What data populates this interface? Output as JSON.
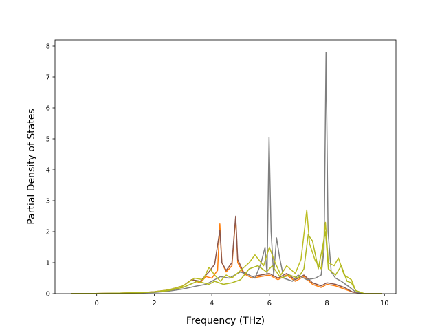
{
  "chart_data": {
    "type": "line",
    "title": "",
    "xlabel": "Frequency (THz)",
    "ylabel": "Partial Density of States",
    "xlim": [
      -1.45,
      10.4
    ],
    "ylim": [
      0,
      8.2
    ],
    "xticks": [
      0,
      2,
      4,
      6,
      8,
      10
    ],
    "yticks": [
      0,
      1,
      2,
      3,
      4,
      5,
      6,
      7,
      8
    ],
    "grid": false,
    "legend": "none",
    "series": [
      {
        "color": "#ff7f0e",
        "points": [
          [
            -0.9,
            0
          ],
          [
            0.5,
            0.01
          ],
          [
            1.5,
            0.03
          ],
          [
            2,
            0.06
          ],
          [
            2.5,
            0.12
          ],
          [
            3,
            0.25
          ],
          [
            3.3,
            0.45
          ],
          [
            3.6,
            0.35
          ],
          [
            3.8,
            0.55
          ],
          [
            4,
            0.5
          ],
          [
            4.2,
            0.75
          ],
          [
            4.28,
            2.25
          ],
          [
            4.35,
            1.0
          ],
          [
            4.5,
            0.7
          ],
          [
            4.7,
            0.9
          ],
          [
            4.83,
            2.45
          ],
          [
            4.9,
            1.0
          ],
          [
            5.1,
            0.65
          ],
          [
            5.4,
            0.5
          ],
          [
            5.7,
            0.55
          ],
          [
            6,
            0.6
          ],
          [
            6.3,
            0.45
          ],
          [
            6.6,
            0.6
          ],
          [
            6.9,
            0.4
          ],
          [
            7.2,
            0.55
          ],
          [
            7.5,
            0.3
          ],
          [
            7.8,
            0.2
          ],
          [
            8.0,
            0.3
          ],
          [
            8.3,
            0.25
          ],
          [
            8.6,
            0.15
          ],
          [
            8.9,
            0.05
          ],
          [
            9.3,
            0
          ],
          [
            9.9,
            0
          ]
        ]
      },
      {
        "color": "#8c564b",
        "points": [
          [
            -0.9,
            0
          ],
          [
            0.5,
            0.01
          ],
          [
            1.5,
            0.03
          ],
          [
            2,
            0.06
          ],
          [
            2.5,
            0.12
          ],
          [
            3,
            0.25
          ],
          [
            3.3,
            0.45
          ],
          [
            3.6,
            0.4
          ],
          [
            3.9,
            0.7
          ],
          [
            4.1,
            0.95
          ],
          [
            4.28,
            2.05
          ],
          [
            4.35,
            1.0
          ],
          [
            4.5,
            0.75
          ],
          [
            4.7,
            1.0
          ],
          [
            4.83,
            2.5
          ],
          [
            4.9,
            1.1
          ],
          [
            5.1,
            0.7
          ],
          [
            5.4,
            0.55
          ],
          [
            5.7,
            0.6
          ],
          [
            6,
            0.65
          ],
          [
            6.3,
            0.5
          ],
          [
            6.6,
            0.65
          ],
          [
            6.9,
            0.45
          ],
          [
            7.2,
            0.6
          ],
          [
            7.5,
            0.35
          ],
          [
            7.8,
            0.25
          ],
          [
            8.0,
            0.35
          ],
          [
            8.3,
            0.3
          ],
          [
            8.6,
            0.2
          ],
          [
            8.9,
            0.05
          ],
          [
            9.3,
            0
          ],
          [
            9.9,
            0
          ]
        ]
      },
      {
        "color": "#7f7f7f",
        "points": [
          [
            -0.9,
            0
          ],
          [
            1,
            0.01
          ],
          [
            2,
            0.04
          ],
          [
            2.5,
            0.08
          ],
          [
            3,
            0.15
          ],
          [
            3.5,
            0.25
          ],
          [
            3.8,
            0.3
          ],
          [
            4.0,
            0.4
          ],
          [
            4.3,
            0.55
          ],
          [
            4.6,
            0.5
          ],
          [
            5.0,
            0.7
          ],
          [
            5.3,
            0.6
          ],
          [
            5.5,
            0.5
          ],
          [
            5.7,
            0.95
          ],
          [
            5.85,
            1.5
          ],
          [
            5.92,
            0.6
          ],
          [
            5.99,
            5.05
          ],
          [
            6.06,
            2.0
          ],
          [
            6.15,
            0.6
          ],
          [
            6.25,
            1.8
          ],
          [
            6.35,
            1.2
          ],
          [
            6.5,
            0.5
          ],
          [
            6.8,
            0.4
          ],
          [
            7.0,
            0.6
          ],
          [
            7.3,
            0.45
          ],
          [
            7.6,
            0.5
          ],
          [
            7.8,
            0.6
          ],
          [
            7.9,
            1.4
          ],
          [
            7.97,
            7.8
          ],
          [
            8.04,
            2.0
          ],
          [
            8.15,
            0.7
          ],
          [
            8.3,
            0.5
          ],
          [
            8.5,
            0.4
          ],
          [
            8.8,
            0.2
          ],
          [
            9.0,
            0.05
          ],
          [
            9.3,
            0
          ],
          [
            9.9,
            0
          ]
        ]
      },
      {
        "color": "#bcbd22",
        "points": [
          [
            -0.9,
            0
          ],
          [
            0.5,
            0.01
          ],
          [
            1.5,
            0.03
          ],
          [
            2,
            0.06
          ],
          [
            2.5,
            0.12
          ],
          [
            3,
            0.25
          ],
          [
            3.4,
            0.5
          ],
          [
            3.7,
            0.45
          ],
          [
            3.9,
            0.85
          ],
          [
            4.1,
            0.6
          ],
          [
            4.3,
            0.4
          ],
          [
            4.5,
            0.6
          ],
          [
            4.7,
            0.5
          ],
          [
            5.0,
            0.75
          ],
          [
            5.3,
            1.0
          ],
          [
            5.5,
            1.25
          ],
          [
            5.8,
            0.9
          ],
          [
            6.0,
            1.5
          ],
          [
            6.2,
            1.0
          ],
          [
            6.4,
            0.6
          ],
          [
            6.6,
            0.9
          ],
          [
            6.9,
            0.65
          ],
          [
            7.1,
            1.1
          ],
          [
            7.3,
            2.7
          ],
          [
            7.4,
            1.6
          ],
          [
            7.6,
            1.05
          ],
          [
            7.8,
            0.8
          ],
          [
            7.95,
            2.3
          ],
          [
            8.05,
            1.0
          ],
          [
            8.25,
            0.9
          ],
          [
            8.4,
            1.15
          ],
          [
            8.6,
            0.6
          ],
          [
            8.85,
            0.45
          ],
          [
            9.0,
            0.1
          ],
          [
            9.3,
            0
          ],
          [
            9.9,
            0
          ]
        ]
      },
      {
        "color": "#b0b820",
        "points": [
          [
            -0.9,
            0
          ],
          [
            0.5,
            0.01
          ],
          [
            1.5,
            0.03
          ],
          [
            2,
            0.05
          ],
          [
            2.5,
            0.1
          ],
          [
            3,
            0.2
          ],
          [
            3.5,
            0.4
          ],
          [
            3.9,
            0.3
          ],
          [
            4.1,
            0.4
          ],
          [
            4.4,
            0.3
          ],
          [
            4.7,
            0.35
          ],
          [
            5.0,
            0.45
          ],
          [
            5.3,
            0.8
          ],
          [
            5.6,
            0.9
          ],
          [
            5.9,
            0.7
          ],
          [
            6.1,
            0.9
          ],
          [
            6.4,
            0.5
          ],
          [
            6.7,
            0.6
          ],
          [
            7.0,
            0.5
          ],
          [
            7.2,
            0.8
          ],
          [
            7.35,
            1.9
          ],
          [
            7.5,
            1.7
          ],
          [
            7.7,
            0.8
          ],
          [
            7.95,
            2.0
          ],
          [
            8.05,
            0.8
          ],
          [
            8.3,
            0.6
          ],
          [
            8.5,
            0.9
          ],
          [
            8.7,
            0.4
          ],
          [
            8.85,
            0.35
          ],
          [
            9.0,
            0.1
          ],
          [
            9.3,
            0
          ],
          [
            9.9,
            0
          ]
        ]
      }
    ]
  }
}
